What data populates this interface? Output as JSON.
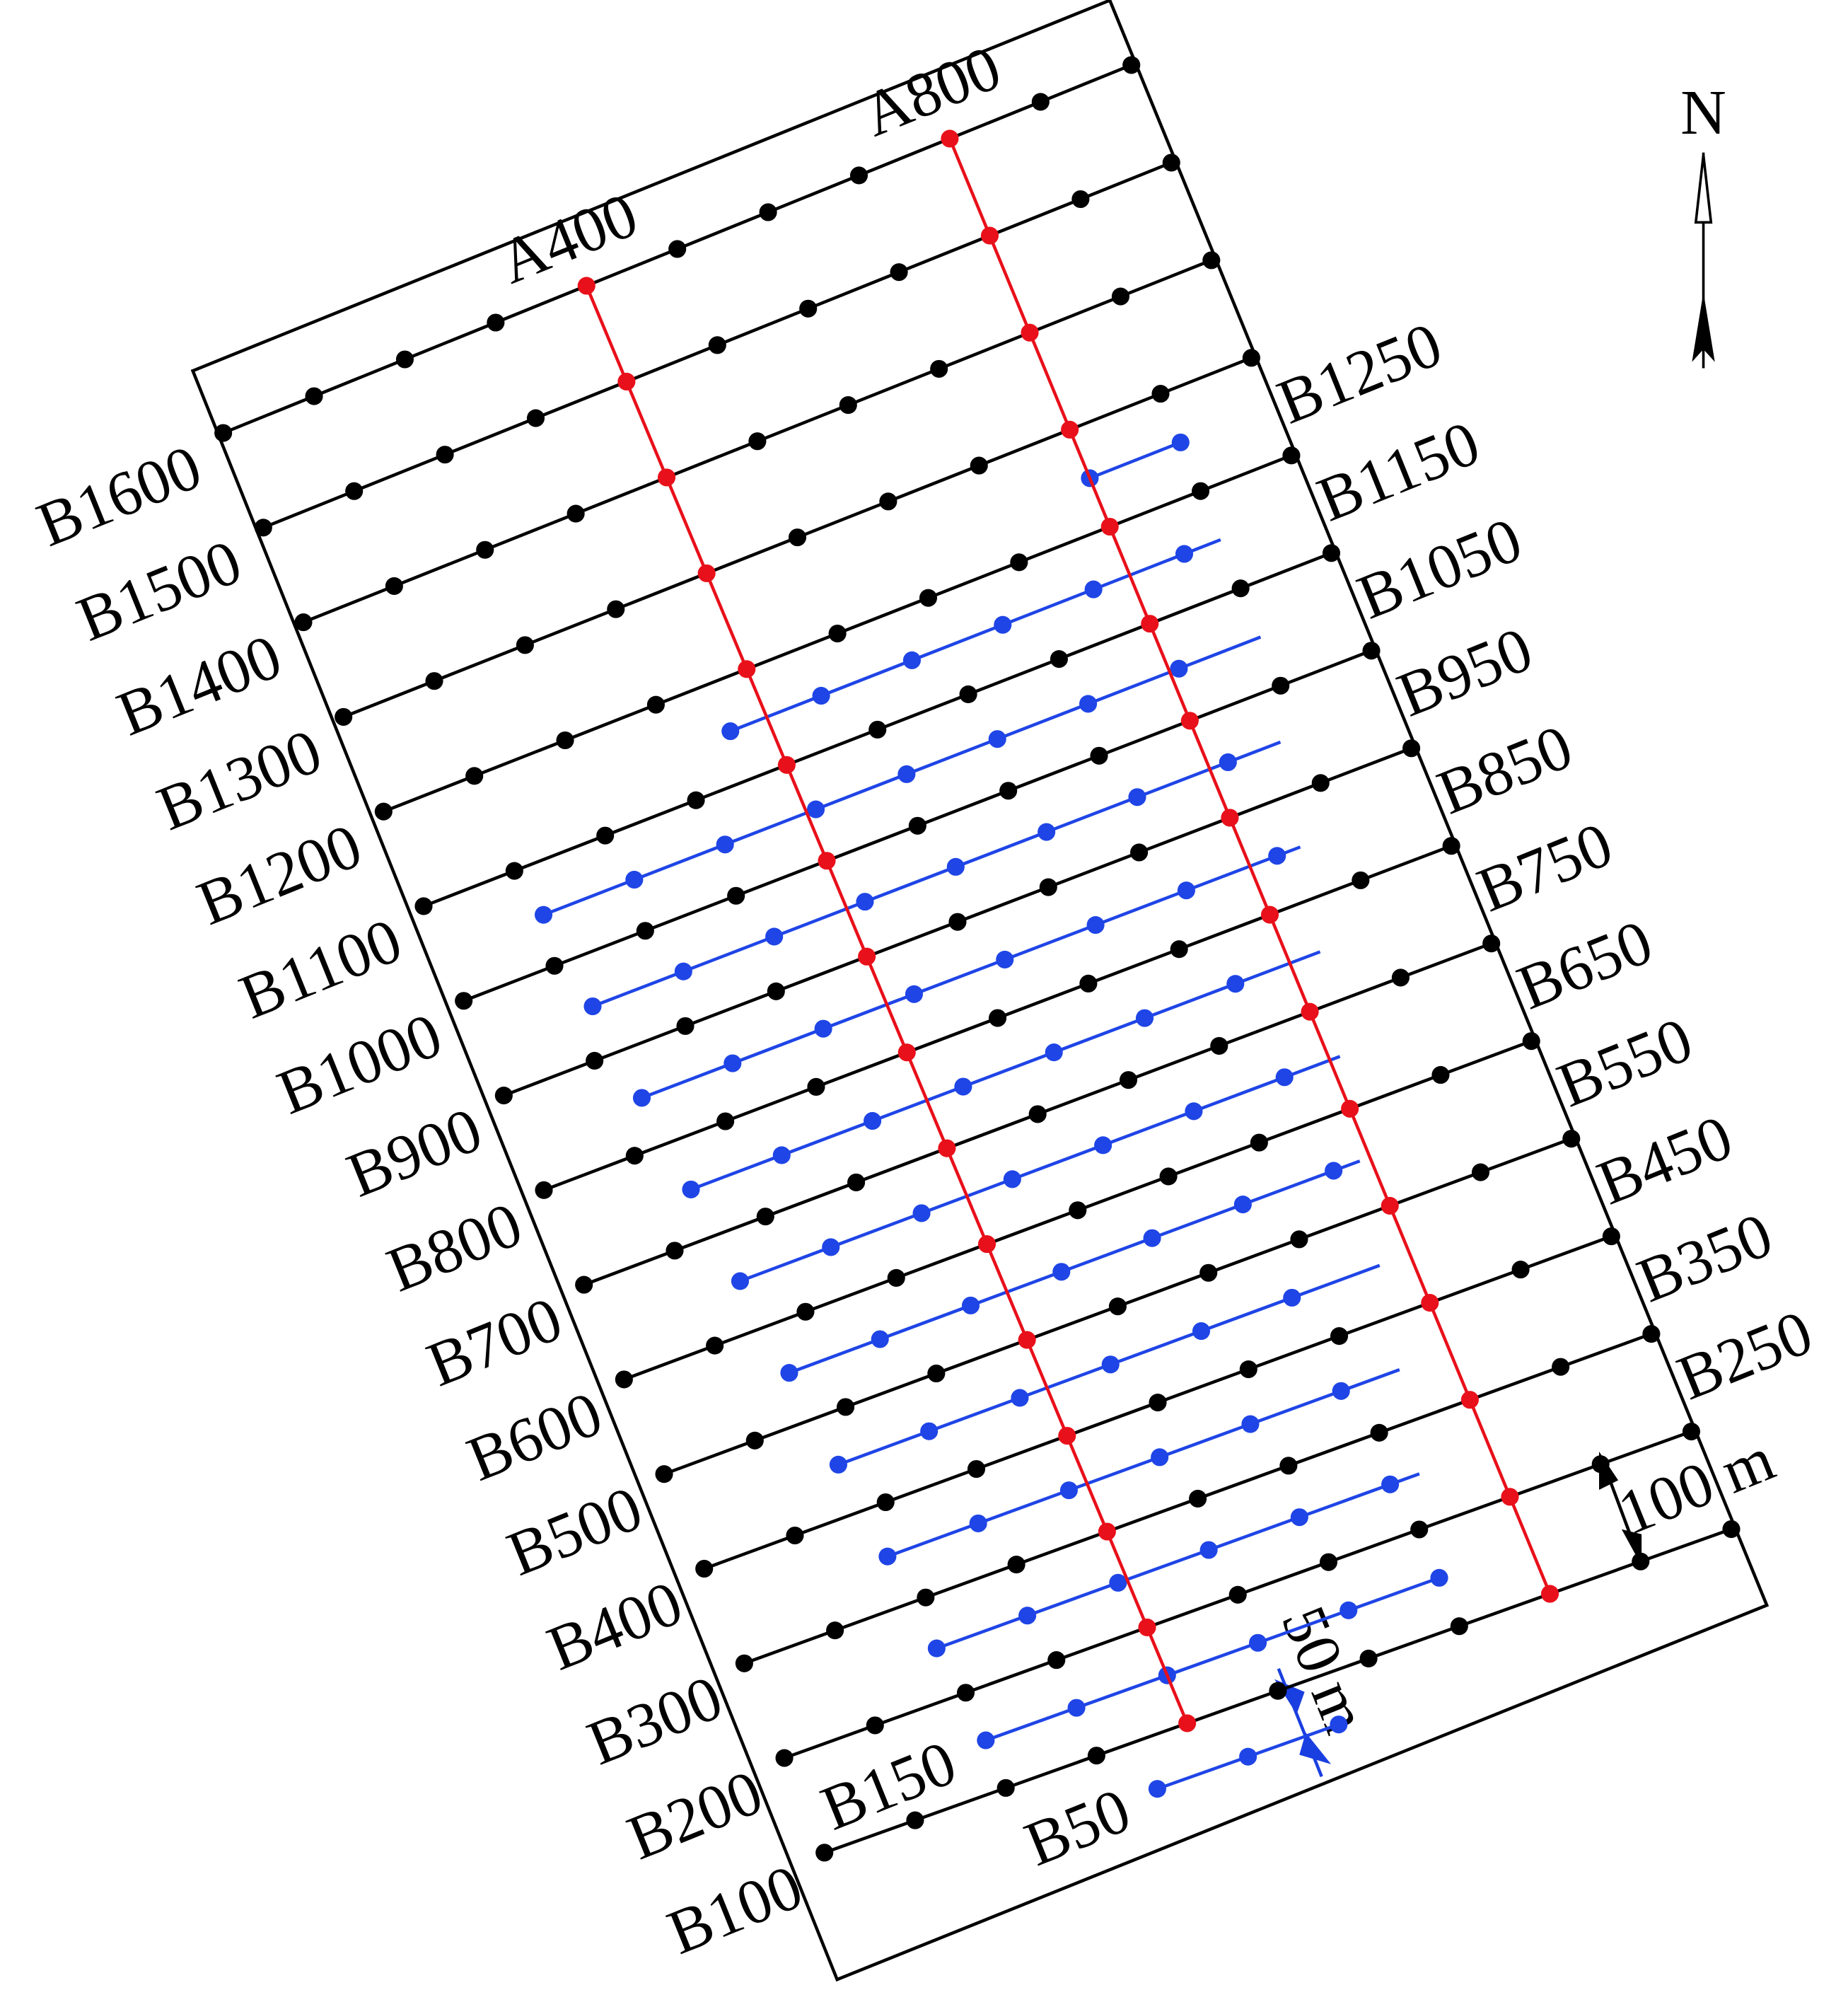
{
  "north": "N",
  "scale_labels": [
    "100 m",
    "50 m"
  ],
  "a_lines": [
    "A400",
    "A800"
  ],
  "left_labels": [
    "B100",
    "B200",
    "B300",
    "B400",
    "B500",
    "B600",
    "B700",
    "B800",
    "B900",
    "B1000",
    "B1100",
    "B1200",
    "B1300",
    "B1400",
    "B1500",
    "B1600"
  ],
  "right_labels": [
    "B250",
    "B350",
    "B450",
    "B550",
    "B650",
    "B750",
    "B850",
    "B950",
    "B1050",
    "B1150",
    "B1250"
  ],
  "bottom_labels": [
    "B50",
    "B150"
  ]
}
